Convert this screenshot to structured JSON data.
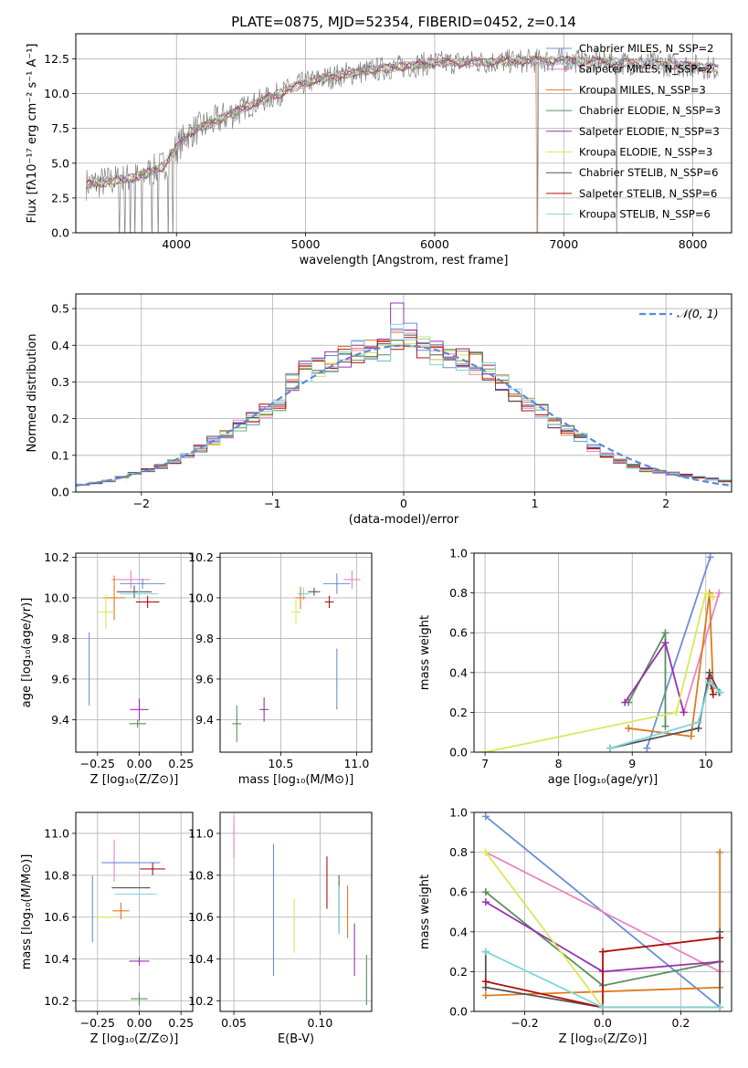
{
  "colors": {
    "chab_miles": "#6a8fd8",
    "salp_miles": "#e884c2",
    "krou_miles": "#e07a1f",
    "chab_elodie": "#5a8f5a",
    "salp_elodie": "#9b30b0",
    "krou_elodie": "#d8e85a",
    "chab_stelib": "#555555",
    "salp_stelib": "#b01010",
    "krou_stelib": "#7fd4dc",
    "data": "#808080",
    "grid": "#b0b0b0",
    "gauss": "#5a8ad8"
  },
  "chart_data": [
    {
      "id": "spectrum",
      "type": "line",
      "title": "PLATE=0875, MJD=52354, FIBERID=0452, z=0.14",
      "xlabel": "wavelength [Angstrom, rest frame]",
      "ylabel": "Flux [fλ10⁻¹⁷ erg cm⁻² s⁻¹ A⁻¹]",
      "xlim": [
        3220,
        8300
      ],
      "ylim": [
        0,
        14.3
      ],
      "xticks": [
        "4000",
        "5000",
        "6000",
        "7000",
        "8000"
      ],
      "yticks": [
        "0.0",
        "2.5",
        "5.0",
        "7.5",
        "10.0",
        "12.5"
      ],
      "legend_position": "top-right",
      "series": [
        {
          "name": "Chabrier MILES, N_SSP=2",
          "color_key": "chab_miles"
        },
        {
          "name": "Salpeter MILES, N_SSP=2",
          "color_key": "salp_miles"
        },
        {
          "name": "Kroupa MILES, N_SSP=3",
          "color_key": "krou_miles"
        },
        {
          "name": "Chabrier ELODIE, N_SSP=3",
          "color_key": "chab_elodie"
        },
        {
          "name": "Salpeter ELODIE, N_SSP=3",
          "color_key": "salp_elodie"
        },
        {
          "name": "Kroupa ELODIE, N_SSP=3",
          "color_key": "krou_elodie"
        },
        {
          "name": "Chabrier STELIB, N_SSP=6",
          "color_key": "chab_stelib"
        },
        {
          "name": "Salpeter STELIB, N_SSP=6",
          "color_key": "salp_stelib"
        },
        {
          "name": "Kroupa STELIB, N_SSP=6",
          "color_key": "krou_stelib"
        }
      ],
      "continuum": {
        "x": [
          3300,
          3500,
          3700,
          3900,
          4000,
          4100,
          4300,
          4500,
          4800,
          5000,
          5300,
          5600,
          6000,
          6500,
          7000,
          7500,
          8000,
          8200
        ],
        "y": [
          3.5,
          3.7,
          4.0,
          4.8,
          6.1,
          7.2,
          8.0,
          8.9,
          10.0,
          10.8,
          11.4,
          11.8,
          12.2,
          12.3,
          12.4,
          12.2,
          12.0,
          11.8
        ]
      },
      "dropouts": [
        3560,
        3600,
        3640,
        3680,
        3730,
        3810,
        3860,
        3935,
        3970,
        6800,
        7410
      ]
    },
    {
      "id": "residuals",
      "type": "line",
      "xlabel": "(data-model)/error",
      "ylabel": "Normed distribution",
      "xlim": [
        -2.5,
        2.5
      ],
      "ylim": [
        0,
        0.54
      ],
      "xticks": [
        "−2",
        "−1",
        "0",
        "1",
        "2"
      ],
      "yticks": [
        "0.0",
        "0.1",
        "0.2",
        "0.3",
        "0.4",
        "0.5"
      ],
      "legend": "𝒩(0, 1)",
      "legend_position": "top-right",
      "bin_edges_start": -2.5,
      "bin_width": 0.1,
      "hist_base": [
        0.02,
        0.025,
        0.03,
        0.04,
        0.05,
        0.06,
        0.07,
        0.085,
        0.1,
        0.12,
        0.14,
        0.16,
        0.18,
        0.2,
        0.22,
        0.24,
        0.3,
        0.33,
        0.34,
        0.36,
        0.37,
        0.38,
        0.38,
        0.39,
        0.42,
        0.41,
        0.4,
        0.38,
        0.37,
        0.36,
        0.35,
        0.33,
        0.3,
        0.26,
        0.24,
        0.22,
        0.19,
        0.17,
        0.15,
        0.12,
        0.1,
        0.085,
        0.07,
        0.06,
        0.055,
        0.05,
        0.045,
        0.04,
        0.035,
        0.03
      ],
      "hist_peaks": {
        "salp_elodie": [
          [
            24,
            0.515
          ]
        ],
        "chab_miles": [
          [
            25,
            0.46
          ]
        ]
      }
    },
    {
      "id": "age_vs_Z",
      "type": "scatter",
      "xlabel": "Z [log₁₀(Z/Z⊙)]",
      "ylabel": "age  [log₁₀(age/yr)]",
      "xlim": [
        -0.38,
        0.32
      ],
      "ylim": [
        9.24,
        10.22
      ],
      "xticks": [
        "−0.25",
        "0.00",
        "0.25"
      ],
      "yticks": [
        "9.4",
        "9.6",
        "9.8",
        "10.0",
        "10.2"
      ],
      "points": [
        {
          "c": "salp_miles",
          "x": -0.05,
          "y": 10.09,
          "ex": 0.23,
          "ey": 0.09
        },
        {
          "c": "chab_miles",
          "x": 0.02,
          "y": 10.07,
          "ex": 0.27,
          "ey": 0.05
        },
        {
          "c": "chab_stelib",
          "x": -0.03,
          "y": 10.03,
          "ex": 0.21,
          "ey": 0.06
        },
        {
          "c": "krou_stelib",
          "x": 0.0,
          "y": 10.02,
          "ex": 0.23,
          "ey": 0.06
        },
        {
          "c": "krou_miles",
          "x": -0.15,
          "y": 10.0,
          "ex": 0.13,
          "ey": 0.22
        },
        {
          "c": "salp_stelib",
          "x": 0.05,
          "y": 9.98,
          "ex": 0.14,
          "ey": 0.06
        },
        {
          "c": "krou_elodie",
          "x": -0.2,
          "y": 9.93,
          "ex": 0.09,
          "ey": 0.17
        },
        {
          "c": "chab_miles",
          "x": -0.3,
          "y": 9.65,
          "ex": 0.0,
          "ey": 0.36
        },
        {
          "c": "salp_elodie",
          "x": 0.0,
          "y": 9.45,
          "ex": 0.11,
          "ey": 0.11
        },
        {
          "c": "chab_elodie",
          "x": -0.01,
          "y": 9.38,
          "ex": 0.1,
          "ey": 0.04
        }
      ]
    },
    {
      "id": "age_vs_mass",
      "type": "scatter",
      "xlabel": "mass [log₁₀(M/M⊙)]",
      "ylabel": "",
      "xlim": [
        10.1,
        11.1
      ],
      "ylim": [
        9.24,
        10.22
      ],
      "xticks": [
        "10.5",
        "11.0"
      ],
      "yticks": [
        "9.4",
        "9.6",
        "9.8",
        "10.0",
        "10.2"
      ],
      "points": [
        {
          "c": "salp_miles",
          "x": 10.97,
          "y": 10.09,
          "ex": 0.11,
          "ey": 0.09
        },
        {
          "c": "chab_miles",
          "x": 10.87,
          "y": 10.07,
          "ex": 0.18,
          "ey": 0.1
        },
        {
          "c": "chab_stelib",
          "x": 10.72,
          "y": 10.03,
          "ex": 0.08,
          "ey": 0.04
        },
        {
          "c": "krou_stelib",
          "x": 10.65,
          "y": 10.02,
          "ex": 0.08,
          "ey": 0.06
        },
        {
          "c": "krou_miles",
          "x": 10.63,
          "y": 10.0,
          "ex": 0.07,
          "ey": 0.11
        },
        {
          "c": "salp_stelib",
          "x": 10.82,
          "y": 9.98,
          "ex": 0.06,
          "ey": 0.06
        },
        {
          "c": "krou_elodie",
          "x": 10.6,
          "y": 9.93,
          "ex": 0.06,
          "ey": 0.12
        },
        {
          "c": "chab_miles",
          "x": 10.87,
          "y": 9.6,
          "ex": 0.0,
          "ey": 0.3
        },
        {
          "c": "salp_elodie",
          "x": 10.39,
          "y": 9.45,
          "ex": 0.06,
          "ey": 0.12
        },
        {
          "c": "chab_elodie",
          "x": 10.21,
          "y": 9.38,
          "ex": 0.06,
          "ey": 0.18
        }
      ]
    },
    {
      "id": "weight_vs_age",
      "type": "line",
      "xlabel": "age  [log₁₀(age/yr)]",
      "ylabel": "mass weight",
      "xlim": [
        6.85,
        10.35
      ],
      "ylim": [
        0,
        1.0
      ],
      "xticks": [
        "7",
        "8",
        "9",
        "10"
      ],
      "yticks": [
        "0.0",
        "0.2",
        "0.4",
        "0.6",
        "0.8",
        "1.0"
      ],
      "series": [
        {
          "c": "chab_miles",
          "x": [
            9.2,
            10.06
          ],
          "y": [
            0.02,
            0.98
          ]
        },
        {
          "c": "salp_miles",
          "x": [
            9.7,
            10.18
          ],
          "y": [
            0.2,
            0.8
          ]
        },
        {
          "c": "krou_miles",
          "x": [
            8.95,
            9.8,
            10.05,
            10.1
          ],
          "y": [
            0.12,
            0.08,
            0.8,
            0.32
          ]
        },
        {
          "c": "chab_elodie",
          "x": [
            8.95,
            9.45,
            9.45
          ],
          "y": [
            0.25,
            0.6,
            0.13
          ]
        },
        {
          "c": "salp_elodie",
          "x": [
            8.9,
            9.45,
            9.7
          ],
          "y": [
            0.25,
            0.55,
            0.2
          ]
        },
        {
          "c": "krou_elodie",
          "x": [
            7.0,
            9.6,
            10.0,
            10.1
          ],
          "y": [
            0.0,
            0.2,
            0.8,
            0.78
          ]
        },
        {
          "c": "chab_stelib",
          "x": [
            8.7,
            9.9,
            10.05,
            10.18
          ],
          "y": [
            0.02,
            0.12,
            0.4,
            0.3
          ]
        },
        {
          "c": "salp_stelib",
          "x": [
            10.05,
            10.1
          ],
          "y": [
            0.37,
            0.29
          ]
        },
        {
          "c": "krou_stelib",
          "x": [
            8.7,
            9.9,
            10.05,
            10.2
          ],
          "y": [
            0.02,
            0.15,
            0.35,
            0.3
          ]
        }
      ]
    },
    {
      "id": "mass_vs_Z",
      "type": "scatter",
      "xlabel": "Z [log₁₀(Z/Z⊙)]",
      "ylabel": "mass [log₁₀(M/M⊙)]",
      "xlim": [
        -0.38,
        0.32
      ],
      "ylim": [
        10.15,
        11.1
      ],
      "xticks": [
        "−0.25",
        "0.00",
        "0.25"
      ],
      "yticks": [
        "10.2",
        "10.4",
        "10.6",
        "10.8",
        "11.0"
      ],
      "points": [
        {
          "c": "salp_miles",
          "x": -0.15,
          "y": 10.87,
          "ex": 0.0,
          "ey": 0.2
        },
        {
          "c": "chab_miles",
          "x": -0.05,
          "y": 10.86,
          "ex": 0.35,
          "ey": 0.0
        },
        {
          "c": "chab_miles",
          "x": -0.28,
          "y": 10.64,
          "ex": 0.0,
          "ey": 0.32
        },
        {
          "c": "salp_stelib",
          "x": 0.08,
          "y": 10.83,
          "ex": 0.15,
          "ey": 0.06
        },
        {
          "c": "chab_stelib",
          "x": -0.05,
          "y": 10.74,
          "ex": 0.23,
          "ey": 0.0
        },
        {
          "c": "krou_stelib",
          "x": -0.02,
          "y": 10.71,
          "ex": 0.25,
          "ey": 0.0
        },
        {
          "c": "krou_miles",
          "x": -0.11,
          "y": 10.63,
          "ex": 0.1,
          "ey": 0.08
        },
        {
          "c": "krou_elodie",
          "x": -0.2,
          "y": 10.6,
          "ex": 0.12,
          "ey": 0.0
        },
        {
          "c": "salp_elodie",
          "x": 0.0,
          "y": 10.39,
          "ex": 0.12,
          "ey": 0.04
        },
        {
          "c": "chab_elodie",
          "x": 0.0,
          "y": 10.21,
          "ex": 0.1,
          "ey": 0.06
        }
      ]
    },
    {
      "id": "mass_vs_EBV",
      "type": "scatter",
      "xlabel": "E(B-V)",
      "ylabel": "",
      "xlim": [
        0.042,
        0.13
      ],
      "ylim": [
        10.15,
        11.1
      ],
      "xticks": [
        "0.05",
        "0.10"
      ],
      "yticks": [
        "10.2",
        "10.4",
        "10.6",
        "10.8",
        "11.0"
      ],
      "segments": [
        {
          "c": "salp_miles",
          "x": 0.05,
          "y0": 10.88,
          "y1": 11.08
        },
        {
          "c": "chab_miles",
          "x": 0.073,
          "y0": 10.32,
          "y1": 10.95
        },
        {
          "c": "krou_elodie",
          "x": 0.085,
          "y0": 10.43,
          "y1": 10.69
        },
        {
          "c": "salp_stelib",
          "x": 0.104,
          "y0": 10.64,
          "y1": 10.89
        },
        {
          "c": "chab_stelib",
          "x": 0.111,
          "y0": 10.52,
          "y1": 10.8
        },
        {
          "c": "krou_stelib",
          "x": 0.111,
          "y0": 10.52,
          "y1": 10.75
        },
        {
          "c": "krou_miles",
          "x": 0.116,
          "y0": 10.5,
          "y1": 10.75
        },
        {
          "c": "salp_elodie",
          "x": 0.12,
          "y0": 10.32,
          "y1": 10.57
        },
        {
          "c": "chab_elodie",
          "x": 0.127,
          "y0": 10.18,
          "y1": 10.42
        }
      ]
    },
    {
      "id": "weight_vs_Z",
      "type": "line",
      "xlabel": "Z [log₁₀(Z/Z⊙)]",
      "ylabel": "mass weight",
      "xlim": [
        -0.33,
        0.33
      ],
      "ylim": [
        0,
        1.0
      ],
      "xticks": [
        "−0.2",
        "0.0",
        "0.2"
      ],
      "yticks": [
        "0.0",
        "0.2",
        "0.4",
        "0.6",
        "0.8",
        "1.0"
      ],
      "series": [
        {
          "c": "chab_miles",
          "x": [
            -0.3,
            0.3
          ],
          "y": [
            0.98,
            0.02
          ]
        },
        {
          "c": "salp_miles",
          "x": [
            -0.3,
            0.3
          ],
          "y": [
            0.8,
            0.2
          ]
        },
        {
          "c": "krou_miles",
          "x": [
            -0.3,
            0.3,
            0.3
          ],
          "y": [
            0.08,
            0.12,
            0.8
          ]
        },
        {
          "c": "chab_elodie",
          "x": [
            -0.3,
            -0.3,
            0.0,
            0.3
          ],
          "y": [
            0.6,
            0.6,
            0.13,
            0.25
          ]
        },
        {
          "c": "salp_elodie",
          "x": [
            -0.3,
            0.0,
            0.3
          ],
          "y": [
            0.55,
            0.2,
            0.25
          ]
        },
        {
          "c": "krou_elodie",
          "x": [
            -0.3,
            -0.3,
            0.0,
            0.3
          ],
          "y": [
            0.8,
            0.8,
            0.02,
            0.02
          ]
        },
        {
          "c": "chab_stelib",
          "x": [
            -0.3,
            -0.3,
            0.0,
            0.3,
            0.3
          ],
          "y": [
            0.3,
            0.12,
            0.02,
            0.02,
            0.4
          ]
        },
        {
          "c": "salp_stelib",
          "x": [
            -0.3,
            0.0,
            0.0,
            0.3
          ],
          "y": [
            0.15,
            0.02,
            0.3,
            0.37
          ]
        },
        {
          "c": "krou_stelib",
          "x": [
            -0.3,
            0.0,
            0.3
          ],
          "y": [
            0.3,
            0.02,
            0.02
          ]
        }
      ]
    }
  ]
}
